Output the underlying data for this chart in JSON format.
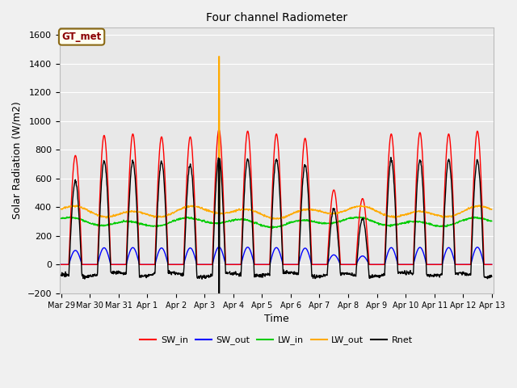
{
  "title": "Four channel Radiometer",
  "xlabel": "Time",
  "ylabel": "Solar Radiation (W/m2)",
  "ylim": [
    -200,
    1650
  ],
  "background_color": "#f0f0f0",
  "plot_bg_color": "#e8e8e8",
  "annotation_text": "GT_met",
  "annotation_bg": "#fffff0",
  "annotation_border": "#8b6914",
  "annotation_text_color": "#8b0000",
  "x_tick_labels": [
    "Mar 29",
    "Mar 30",
    "Mar 31",
    "Apr 1",
    "Apr 2",
    "Apr 3",
    "Apr 4",
    "Apr 5",
    "Apr 6",
    "Apr 7",
    "Apr 8",
    "Apr 9",
    "Apr 10",
    "Apr 11",
    "Apr 12",
    "Apr 13"
  ],
  "x_tick_positions": [
    0,
    1,
    2,
    3,
    4,
    5,
    6,
    7,
    8,
    9,
    10,
    11,
    12,
    13,
    14,
    15
  ],
  "yticks": [
    -200,
    0,
    200,
    400,
    600,
    800,
    1000,
    1200,
    1400,
    1600
  ],
  "series": {
    "SW_in": {
      "color": "#ff0000",
      "lw": 1.0
    },
    "SW_out": {
      "color": "#0000ff",
      "lw": 1.0
    },
    "LW_in": {
      "color": "#00cc00",
      "lw": 1.0
    },
    "LW_out": {
      "color": "#ffaa00",
      "lw": 1.0
    },
    "Rnet": {
      "color": "#000000",
      "lw": 1.0
    }
  },
  "sw_in_peaks": [
    760,
    900,
    910,
    890,
    890,
    940,
    930,
    910,
    880,
    520,
    460,
    910,
    920,
    910,
    930
  ],
  "lw_out_spike_day": 5,
  "lw_out_spike_val": 1450,
  "n_days": 15
}
